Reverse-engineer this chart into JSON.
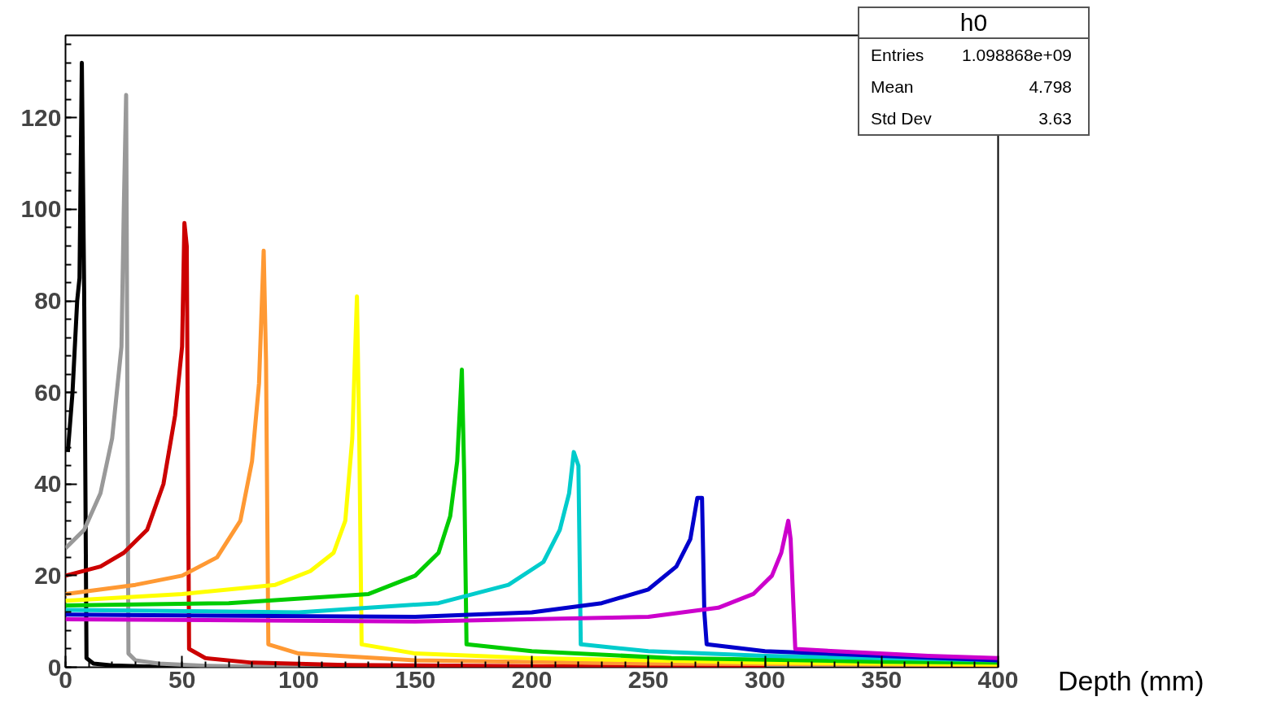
{
  "chart_data": {
    "type": "line",
    "xlabel": "Depth (mm)",
    "xlim": [
      0,
      400
    ],
    "ylim": [
      0,
      138
    ],
    "xticks": [
      0,
      50,
      100,
      150,
      200,
      250,
      300,
      350,
      400
    ],
    "yticks": [
      0,
      20,
      40,
      60,
      80,
      100,
      120
    ],
    "grid": false,
    "marker": "none",
    "line_style": "solid",
    "annotations": [
      "h0",
      "Entries",
      "1.098868e+09",
      "Mean",
      "4.798",
      "Std Dev",
      "3.63"
    ],
    "series": [
      {
        "color": "#000000",
        "x": [
          1,
          3,
          5,
          6,
          7,
          8,
          9,
          12,
          20,
          40,
          60
        ],
        "values": [
          47,
          60,
          80,
          85,
          132,
          82,
          2,
          0.8,
          0.4,
          0.1,
          0
        ]
      },
      {
        "color": "#999999",
        "x": [
          0,
          8,
          15,
          20,
          24,
          25,
          26,
          27,
          30,
          40,
          60,
          100
        ],
        "values": [
          26,
          30,
          38,
          50,
          70,
          100,
          125,
          3,
          1.5,
          0.8,
          0.3,
          0
        ]
      },
      {
        "color": "#cc0000",
        "x": [
          0,
          15,
          25,
          35,
          42,
          47,
          50,
          51,
          52,
          53,
          60,
          80,
          120,
          200,
          300
        ],
        "values": [
          20,
          22,
          25,
          30,
          40,
          55,
          70,
          97,
          92,
          4,
          2,
          1,
          0.5,
          0.2,
          0
        ]
      },
      {
        "color": "#ff9933",
        "x": [
          0,
          30,
          50,
          65,
          75,
          80,
          83,
          85,
          86,
          87,
          100,
          150,
          250,
          400
        ],
        "values": [
          16,
          18,
          20,
          24,
          32,
          45,
          62,
          91,
          67,
          5,
          3,
          1.5,
          0.8,
          0.5
        ]
      },
      {
        "color": "#ffff00",
        "x": [
          0,
          50,
          90,
          105,
          115,
          120,
          123,
          125,
          126,
          127,
          150,
          200,
          300,
          400
        ],
        "values": [
          14.5,
          16,
          18,
          21,
          25,
          32,
          50,
          81,
          50,
          5,
          3,
          2,
          1,
          0.6
        ]
      },
      {
        "color": "#00cc00",
        "x": [
          0,
          70,
          130,
          150,
          160,
          165,
          168,
          170,
          171,
          172,
          200,
          260,
          350,
          400
        ],
        "values": [
          13.5,
          14,
          16,
          20,
          25,
          33,
          45,
          65,
          42,
          5,
          3.5,
          2,
          1.2,
          1
        ]
      },
      {
        "color": "#00cccc",
        "x": [
          0,
          100,
          160,
          190,
          205,
          212,
          216,
          218,
          220,
          221,
          250,
          300,
          400
        ],
        "values": [
          12.5,
          12,
          14,
          18,
          23,
          30,
          38,
          47,
          44,
          5,
          3.5,
          2.5,
          1.5
        ]
      },
      {
        "color": "#0000cc",
        "x": [
          0,
          150,
          200,
          230,
          250,
          262,
          268,
          271,
          273,
          274,
          275,
          300,
          350,
          400
        ],
        "values": [
          11.5,
          11,
          12,
          14,
          17,
          22,
          28,
          37,
          37,
          12,
          5,
          3.5,
          2.5,
          1.5
        ]
      },
      {
        "color": "#cc00cc",
        "x": [
          0,
          150,
          250,
          280,
          295,
          303,
          307,
          310,
          311,
          313,
          330,
          370,
          400
        ],
        "values": [
          10.5,
          10,
          11,
          13,
          16,
          20,
          25,
          32,
          28,
          4,
          3.5,
          2.5,
          2
        ]
      }
    ]
  }
}
